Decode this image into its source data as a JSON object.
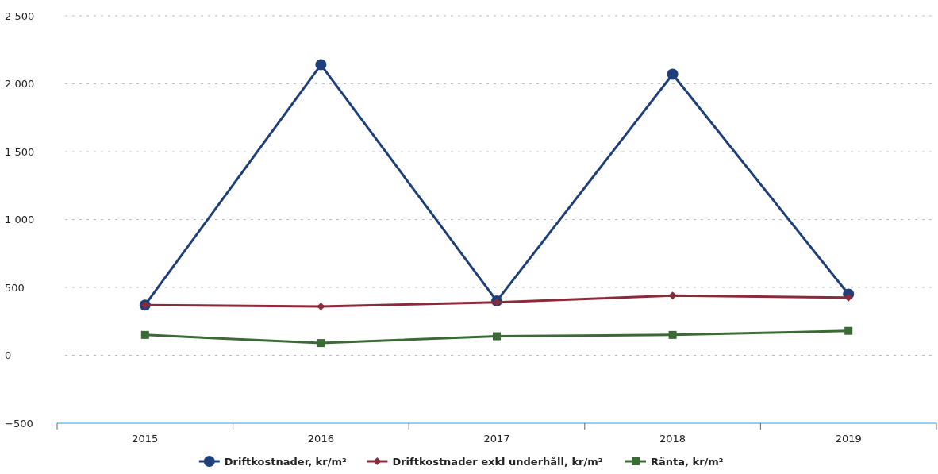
{
  "chart_data": {
    "type": "line",
    "categories": [
      "2015",
      "2016",
      "2017",
      "2018",
      "2019"
    ],
    "series": [
      {
        "name": "Driftkostnader, kr/m²",
        "color": "#1f3f7a",
        "marker": "circle",
        "values": [
          370,
          2140,
          400,
          2070,
          450
        ]
      },
      {
        "name": "Driftkostnader exkl underhåll, kr/m²",
        "color": "#8b2a3a",
        "marker": "diamond",
        "values": [
          370,
          360,
          390,
          440,
          425
        ]
      },
      {
        "name": "Ränta, kr/m²",
        "color": "#3b6b35",
        "marker": "square",
        "values": [
          150,
          90,
          140,
          150,
          180
        ]
      }
    ],
    "ylim": [
      -500,
      2500
    ],
    "yticks": [
      {
        "value": -500,
        "label": "−500"
      },
      {
        "value": 0,
        "label": "0"
      },
      {
        "value": 500,
        "label": "500"
      },
      {
        "value": 1000,
        "label": "1 000"
      },
      {
        "value": 1500,
        "label": "1 500"
      },
      {
        "value": 2000,
        "label": "2 000"
      },
      {
        "value": 2500,
        "label": "2 500"
      }
    ],
    "grid": "y",
    "legend": "bottom"
  }
}
